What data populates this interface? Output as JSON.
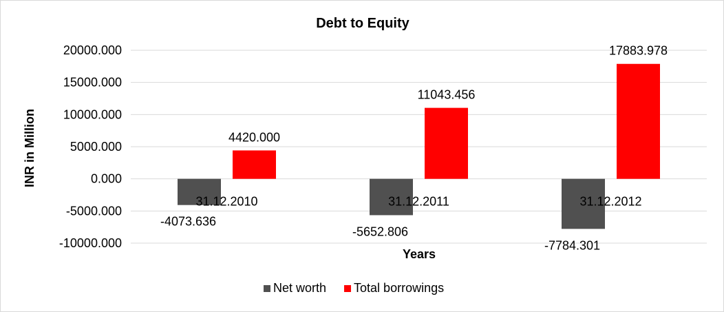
{
  "chart_data": {
    "type": "bar",
    "title": "Debt to Equity",
    "xlabel": "Years",
    "ylabel": "INR in Million",
    "categories": [
      "31.12.2010",
      "31.12.2011",
      "31.12.2012"
    ],
    "series": [
      {
        "name": "Net worth",
        "color": "#505050",
        "values": [
          -4073.636,
          -5652.806,
          -7784.301
        ]
      },
      {
        "name": "Total borrowings",
        "color": "#ff0000",
        "values": [
          4420.0,
          11043.456,
          17883.978
        ]
      }
    ],
    "data_labels": [
      [
        "-4073.636",
        "-5652.806",
        "-7784.301"
      ],
      [
        "4420.000",
        "11043.456",
        "17883.978"
      ]
    ],
    "ylim": [
      -10000,
      20000
    ],
    "yticks": [
      20000,
      15000,
      10000,
      5000,
      0,
      -5000,
      -10000
    ],
    "ytick_labels": [
      "20000.000",
      "15000.000",
      "10000.000",
      "5000.000",
      "0.000",
      "-5000.000",
      "-10000.000"
    ],
    "grid": true,
    "legend_position": "bottom"
  }
}
